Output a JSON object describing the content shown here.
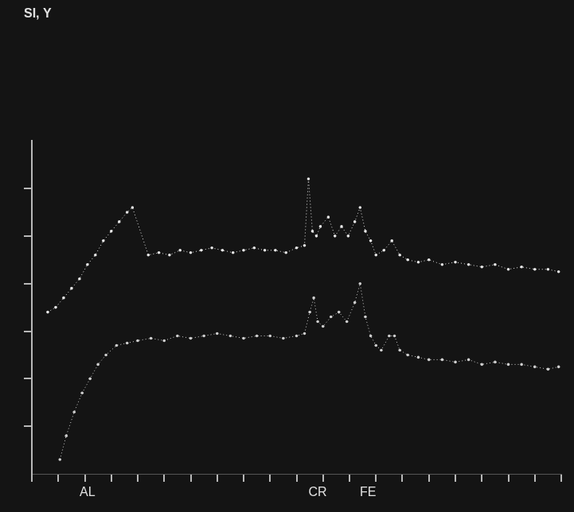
{
  "chart_data": {
    "type": "scatter",
    "title": "SI, Y",
    "xlim": [
      0,
      20
    ],
    "xticks": [
      0,
      1,
      2,
      3,
      4,
      5,
      6,
      7,
      8,
      9,
      10,
      11,
      12,
      13,
      14,
      15,
      16,
      17,
      18,
      19,
      20
    ],
    "ylim": [
      0,
      7
    ],
    "yticks": [
      1,
      2,
      3,
      4,
      5,
      6
    ],
    "grid": false,
    "tick_labels": false,
    "marker": "dot",
    "line_style": "dotted",
    "series": [
      {
        "color": "#e8e8e8",
        "x": [
          0.6,
          0.9,
          1.2,
          1.5,
          1.8,
          2.1,
          2.4,
          2.7,
          3.0,
          3.3,
          3.6,
          3.8,
          4.4,
          4.8,
          5.2,
          5.6,
          6.0,
          6.4,
          6.8,
          7.2,
          7.6,
          8.0,
          8.4,
          8.8,
          9.2,
          9.6,
          10.0,
          10.3,
          10.45,
          10.6,
          10.75,
          10.9,
          11.2,
          11.45,
          11.7,
          11.95,
          12.2,
          12.4,
          12.6,
          12.8,
          13.0,
          13.3,
          13.6,
          13.9,
          14.2,
          14.6,
          15.0,
          15.5,
          16.0,
          16.5,
          17.0,
          17.5,
          18.0,
          18.5,
          19.0,
          19.5,
          19.9
        ],
        "values": [
          3.4,
          3.5,
          3.7,
          3.9,
          4.1,
          4.4,
          4.6,
          4.9,
          5.1,
          5.3,
          5.5,
          5.6,
          4.6,
          4.65,
          4.6,
          4.7,
          4.65,
          4.7,
          4.75,
          4.7,
          4.65,
          4.7,
          4.75,
          4.7,
          4.7,
          4.65,
          4.75,
          4.8,
          6.2,
          5.1,
          5.0,
          5.2,
          5.4,
          5.0,
          5.2,
          5.0,
          5.3,
          5.6,
          5.1,
          4.9,
          4.6,
          4.7,
          4.9,
          4.6,
          4.5,
          4.45,
          4.5,
          4.4,
          4.45,
          4.4,
          4.35,
          4.4,
          4.3,
          4.35,
          4.3,
          4.3,
          4.25
        ]
      },
      {
        "color": "#cfcfcf",
        "x": [
          1.06,
          1.3,
          1.6,
          1.9,
          2.2,
          2.5,
          2.8,
          3.2,
          3.6,
          4.0,
          4.5,
          5.0,
          5.5,
          6.0,
          6.5,
          7.0,
          7.5,
          8.0,
          8.5,
          9.0,
          9.5,
          10.0,
          10.3,
          10.5,
          10.65,
          10.8,
          11.0,
          11.3,
          11.6,
          11.9,
          12.2,
          12.4,
          12.6,
          12.8,
          13.0,
          13.2,
          13.5,
          13.7,
          13.9,
          14.2,
          14.6,
          15.0,
          15.5,
          16.0,
          16.5,
          17.0,
          17.5,
          18.0,
          18.5,
          19.0,
          19.5,
          19.9
        ],
        "values": [
          0.3,
          0.8,
          1.3,
          1.7,
          2.0,
          2.3,
          2.5,
          2.7,
          2.75,
          2.8,
          2.85,
          2.8,
          2.9,
          2.85,
          2.9,
          2.95,
          2.9,
          2.85,
          2.9,
          2.9,
          2.85,
          2.9,
          2.95,
          3.4,
          3.7,
          3.2,
          3.1,
          3.3,
          3.4,
          3.2,
          3.6,
          4.0,
          3.3,
          2.9,
          2.7,
          2.6,
          2.9,
          2.9,
          2.6,
          2.5,
          2.45,
          2.4,
          2.4,
          2.35,
          2.4,
          2.3,
          2.35,
          2.3,
          2.3,
          2.25,
          2.2,
          2.25
        ]
      }
    ],
    "annotations": [
      {
        "text": "AL",
        "x": 2.1
      },
      {
        "text": "CR",
        "x": 10.8
      },
      {
        "text": "FE",
        "x": 12.7
      }
    ]
  }
}
